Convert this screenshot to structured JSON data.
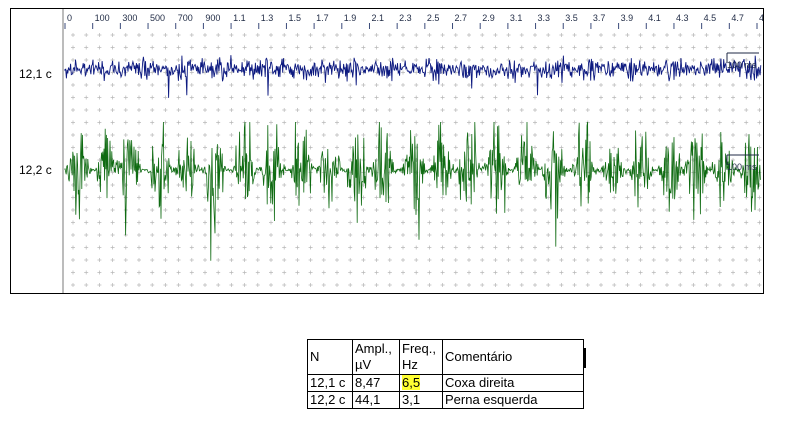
{
  "chart_data": {
    "type": "line",
    "x_tick_labels": [
      "0",
      "100",
      "300",
      "500",
      "700",
      "900",
      "1.1",
      "1.3",
      "1.5",
      "1.7",
      "1.9",
      "2.1",
      "2.3",
      "2.5",
      "2.7",
      "2.9",
      "3.1",
      "3.3",
      "3.5",
      "3.7",
      "3.9",
      "4.1",
      "4.3",
      "4.5",
      "4.7",
      "4"
    ],
    "channels": [
      {
        "name": "12,1 c",
        "scale": "100 ms",
        "color": "#0d1a80"
      },
      {
        "name": "12,2 c",
        "scale": "100 ms",
        "color": "#0f6b12",
        "bursts_ms": [
          80,
          250,
          380,
          560,
          720,
          880,
          1060,
          1220,
          1400,
          1560,
          1720,
          1870,
          2060,
          2220,
          2380,
          2540,
          2720,
          2880,
          3060,
          3230,
          3400,
          3570,
          3720,
          3880,
          4040
        ]
      }
    ],
    "grid": true
  },
  "table": {
    "headers": [
      "N",
      "Ampl., µV",
      "Freq., Hz",
      "Comentário"
    ],
    "rows": [
      [
        "12,1 c",
        "8,47",
        "6,5",
        "Coxa direita"
      ],
      [
        "12,2 c",
        "44,1",
        "3,1",
        "Perna esquerda"
      ]
    ]
  },
  "colors": {
    "highlight": "#ffff33",
    "grid": "#b8b8b8"
  }
}
